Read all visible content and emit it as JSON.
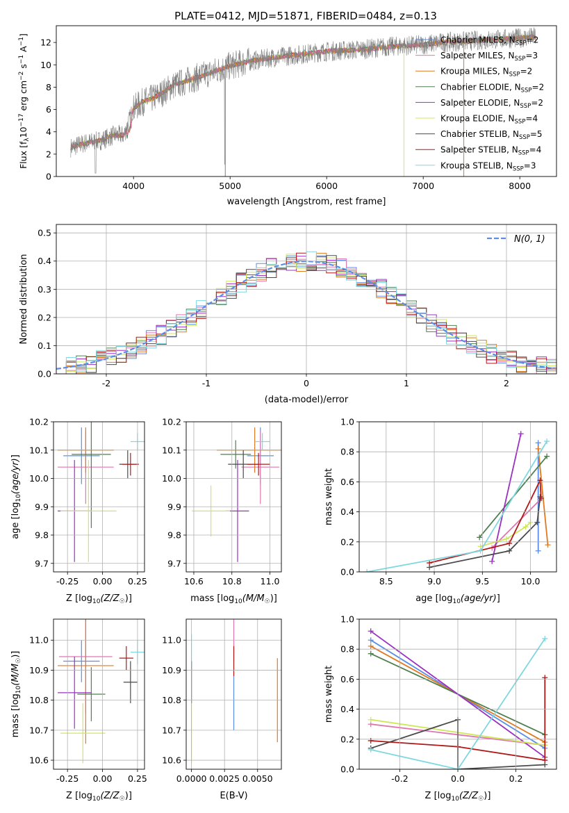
{
  "figure_title": "PLATE=0412, MJD=51871, FIBERID=0484, z=0.13",
  "colors": {
    "Chabrier MILES": "#5b8ee6",
    "Salpeter MILES": "#e075b0",
    "Kroupa MILES": "#e07a1f",
    "Chabrier ELODIE": "#4f7f4f",
    "Salpeter ELODIE": "#9a30c0",
    "Kroupa ELODIE": "#cfe85a",
    "Chabrier STELIB": "#4a4a4a",
    "Salpeter STELIB": "#b01818",
    "Kroupa STELIB": "#7fd8e0",
    "model_line": "#808080",
    "normal_curve": "#5b8ee6"
  },
  "chart_data": [
    {
      "id": "spectrum",
      "type": "line",
      "title": "PLATE=0412, MJD=51871, FIBERID=0484, z=0.13",
      "xlabel": "wavelength [Angstrom, rest frame]",
      "ylabel": "Flux [f_λ 10^-17 erg cm^-2 s^-1 A^-1]",
      "xlim": [
        3200,
        8380
      ],
      "ylim": [
        0,
        13.5
      ],
      "xticks": [
        4000,
        5000,
        6000,
        7000,
        8000
      ],
      "yticks": [
        0,
        2,
        4,
        6,
        8,
        10,
        12
      ],
      "grid": false,
      "legend_position": "upper-right",
      "series": [
        {
          "name": "Chabrier MILES, N_SSP=2",
          "label_base": "Chabrier MILES, N",
          "label_sub": "SSP",
          "label_n": "=2",
          "color_key": "Chabrier MILES"
        },
        {
          "name": "Salpeter MILES, N_SSP=3",
          "label_base": "Salpeter MILES, N",
          "label_sub": "SSP",
          "label_n": "=3",
          "color_key": "Salpeter MILES"
        },
        {
          "name": "Kroupa MILES, N_SSP=2",
          "label_base": "Kroupa MILES, N",
          "label_sub": "SSP",
          "label_n": "=2",
          "color_key": "Kroupa MILES"
        },
        {
          "name": "Chabrier ELODIE, N_SSP=2",
          "label_base": "Chabrier ELODIE, N",
          "label_sub": "SSP",
          "label_n": "=2",
          "color_key": "Chabrier ELODIE"
        },
        {
          "name": "Salpeter ELODIE, N_SSP=2",
          "label_base": "Salpeter ELODIE, N",
          "label_sub": "SSP",
          "label_n": "=2",
          "color_key": "Salpeter ELODIE"
        },
        {
          "name": "Kroupa ELODIE, N_SSP=4",
          "label_base": "Kroupa ELODIE, N",
          "label_sub": "SSP",
          "label_n": "=4",
          "color_key": "Kroupa ELODIE"
        },
        {
          "name": "Chabrier STELIB, N_SSP=5",
          "label_base": "Chabrier STELIB, N",
          "label_sub": "SSP",
          "label_n": "=5",
          "color_key": "Chabrier STELIB"
        },
        {
          "name": "Salpeter STELIB, N_SSP=4",
          "label_base": "Salpeter STELIB, N",
          "label_sub": "SSP",
          "label_n": "=4",
          "color_key": "Salpeter STELIB"
        },
        {
          "name": "Kroupa STELIB, N_SSP=3",
          "label_base": "Kroupa STELIB, N",
          "label_sub": "SSP",
          "label_n": "=3",
          "color_key": "Kroupa STELIB"
        }
      ],
      "continuum": {
        "x": [
          3350,
          3500,
          3650,
          3800,
          3900,
          3950,
          4000,
          4100,
          4200,
          4300,
          4400,
          4600,
          4800,
          5000,
          5200,
          5400,
          5600,
          5800,
          6000,
          6200,
          6400,
          6600,
          6800,
          7000,
          7200,
          7400,
          7600,
          7800,
          8000,
          8170
        ],
        "y": [
          2.6,
          3.0,
          3.2,
          3.7,
          3.7,
          4.9,
          6.1,
          6.7,
          7.0,
          7.5,
          8.1,
          8.7,
          9.3,
          9.9,
          10.3,
          10.6,
          10.8,
          11.0,
          11.2,
          11.3,
          11.4,
          11.6,
          11.7,
          11.8,
          12.0,
          12.1,
          12.2,
          12.3,
          12.4,
          12.5
        ]
      },
      "drop_lines": [
        {
          "x": 6800,
          "color_key": "Kroupa ELODIE"
        },
        {
          "x": 7420,
          "color_key": "Kroupa MILES"
        },
        {
          "x": 4950,
          "color_key": "model_line"
        }
      ]
    },
    {
      "id": "residuals",
      "type": "histogram",
      "xlabel": "(data-model)/error",
      "ylabel": "Normed distribution",
      "xlim": [
        -2.5,
        2.5
      ],
      "ylim": [
        0,
        0.53
      ],
      "xticks": [
        -2,
        -1,
        0,
        1,
        2
      ],
      "yticks": [
        0.0,
        0.1,
        0.2,
        0.3,
        0.4,
        0.5
      ],
      "grid": true,
      "bin_width": 0.1,
      "legend_position": "upper-right",
      "normal_curve": {
        "mean": 0,
        "sigma": 1,
        "label": "N(0, 1)"
      }
    },
    {
      "id": "age_vs_Z",
      "type": "scatter",
      "xlabel": "Z [log10(Z/Z☉)]",
      "ylabel": "age [log10(age/yr)]",
      "xlim": [
        -0.35,
        0.3
      ],
      "ylim": [
        9.67,
        10.2
      ],
      "xticks": [
        -0.25,
        0.0,
        0.25
      ],
      "yticks": [
        9.7,
        9.8,
        9.9,
        10.0,
        10.1,
        10.2
      ],
      "grid": true,
      "points": [
        {
          "color_key": "Chabrier MILES",
          "x": -0.15,
          "y": 10.08,
          "xerr": 0.13,
          "yerr": 0.1
        },
        {
          "color_key": "Salpeter MILES",
          "x": -0.12,
          "y": 10.04,
          "xerr": 0.2,
          "yerr": 0.13
        },
        {
          "color_key": "Kroupa MILES",
          "x": -0.12,
          "y": 10.1,
          "xerr": 0.2,
          "yerr": 0.08
        },
        {
          "color_key": "Chabrier ELODIE",
          "x": -0.08,
          "y": 10.085,
          "xerr": 0.14,
          "yerr": 0.26
        },
        {
          "color_key": "Salpeter ELODIE",
          "x": -0.2,
          "y": 9.885,
          "xerr": 0.12,
          "yerr": 0.18
        },
        {
          "color_key": "Kroupa ELODIE",
          "x": -0.1,
          "y": 9.885,
          "xerr": 0.2,
          "yerr": 0.18
        },
        {
          "color_key": "Chabrier STELIB",
          "x": 0.18,
          "y": 10.05,
          "xerr": 0.06,
          "yerr": 0.05
        },
        {
          "color_key": "Salpeter STELIB",
          "x": 0.2,
          "y": 10.05,
          "xerr": 0.06,
          "yerr": 0.04
        },
        {
          "color_key": "Kroupa STELIB",
          "x": 0.25,
          "y": 10.13,
          "xerr": 0.05,
          "yerr": 0.03
        }
      ]
    },
    {
      "id": "age_vs_mass",
      "type": "scatter",
      "xlabel": "mass [log10(M/M☉)]",
      "ylabel": "",
      "xlim": [
        10.56,
        11.06
      ],
      "ylim": [
        9.67,
        10.2
      ],
      "xticks": [
        10.6,
        10.8,
        11.0
      ],
      "yticks": [
        9.7,
        9.8,
        9.9,
        10.0,
        10.1,
        10.2
      ],
      "grid": true,
      "points": [
        {
          "color_key": "Chabrier MILES",
          "x": 10.95,
          "y": 10.08,
          "xerr": 0.07,
          "yerr": 0.1
        },
        {
          "color_key": "Salpeter MILES",
          "x": 10.95,
          "y": 10.04,
          "xerr": 0.1,
          "yerr": 0.13
        },
        {
          "color_key": "Kroupa MILES",
          "x": 10.92,
          "y": 10.1,
          "xerr": 0.2,
          "yerr": 0.08
        },
        {
          "color_key": "Chabrier ELODIE",
          "x": 10.82,
          "y": 10.085,
          "xerr": 0.08,
          "yerr": 0.05
        },
        {
          "color_key": "Salpeter ELODIE",
          "x": 10.83,
          "y": 9.885,
          "xerr": 0.06,
          "yerr": 0.18
        },
        {
          "color_key": "Kroupa ELODIE",
          "x": 10.69,
          "y": 9.885,
          "xerr": 0.1,
          "yerr": 0.09
        },
        {
          "color_key": "Chabrier STELIB",
          "x": 10.86,
          "y": 10.05,
          "xerr": 0.08,
          "yerr": 0.05
        },
        {
          "color_key": "Salpeter STELIB",
          "x": 10.94,
          "y": 10.05,
          "xerr": 0.06,
          "yerr": 0.04
        },
        {
          "color_key": "Kroupa STELIB",
          "x": 10.96,
          "y": 10.13,
          "xerr": 0.04,
          "yerr": 0.03
        }
      ]
    },
    {
      "id": "mass_weight_vs_age",
      "type": "line",
      "xlabel": "age [log10(age/yr)]",
      "ylabel": "mass weight",
      "xlim": [
        8.22,
        10.27
      ],
      "ylim": [
        0,
        1.0
      ],
      "xticks": [
        8.5,
        9.0,
        9.5,
        10.0
      ],
      "yticks": [
        0.0,
        0.2,
        0.4,
        0.6,
        0.8,
        1.0
      ],
      "grid": true,
      "series": [
        {
          "color_key": "Chabrier MILES",
          "x": [
            10.08,
            10.08
          ],
          "y": [
            0.14,
            0.86
          ]
        },
        {
          "color_key": "Salpeter MILES",
          "x": [
            9.6,
            10.1
          ],
          "y": [
            0.16,
            0.48
          ]
        },
        {
          "color_key": "Kroupa MILES",
          "x": [
            10.08,
            10.18
          ],
          "y": [
            0.82,
            0.18
          ]
        },
        {
          "color_key": "Chabrier ELODIE",
          "x": [
            9.47,
            10.17
          ],
          "y": [
            0.23,
            0.77
          ]
        },
        {
          "color_key": "Salpeter ELODIE",
          "x": [
            9.6,
            9.9
          ],
          "y": [
            0.07,
            0.92
          ]
        },
        {
          "color_key": "Kroupa ELODIE",
          "x": [
            9.48,
            9.75,
            9.95,
            10.0
          ],
          "y": [
            0.17,
            0.22,
            0.3,
            0.33
          ]
        },
        {
          "color_key": "Chabrier STELIB",
          "x": [
            8.95,
            9.78,
            10.07,
            10.1
          ],
          "y": [
            0.03,
            0.14,
            0.33,
            0.5
          ]
        },
        {
          "color_key": "Salpeter STELIB",
          "x": [
            8.95,
            9.78,
            10.1,
            10.11
          ],
          "y": [
            0.06,
            0.19,
            0.61,
            0.49
          ]
        },
        {
          "color_key": "Kroupa STELIB",
          "x": [
            8.3,
            9.48,
            10.17
          ],
          "y": [
            0.0,
            0.14,
            0.87
          ]
        }
      ]
    },
    {
      "id": "mass_vs_Z",
      "type": "scatter",
      "xlabel": "Z [log10(Z/Z☉)]",
      "ylabel": "mass [log10(M/M☉)]",
      "xlim": [
        -0.35,
        0.3
      ],
      "ylim": [
        10.57,
        11.07
      ],
      "xticks": [
        -0.25,
        0.0,
        0.25
      ],
      "yticks": [
        10.6,
        10.7,
        10.8,
        10.9,
        11.0
      ],
      "grid": true,
      "points": [
        {
          "color_key": "Chabrier MILES",
          "x": -0.15,
          "y": 10.93,
          "xerr": 0.13,
          "yerr": 0.07
        },
        {
          "color_key": "Salpeter MILES",
          "x": -0.12,
          "y": 10.945,
          "xerr": 0.19,
          "yerr": 0.19
        },
        {
          "color_key": "Kroupa MILES",
          "x": -0.12,
          "y": 10.915,
          "xerr": 0.2,
          "yerr": 0.26
        },
        {
          "color_key": "Chabrier ELODIE",
          "x": -0.08,
          "y": 10.82,
          "xerr": 0.1,
          "yerr": 0.09
        },
        {
          "color_key": "Salpeter ELODIE",
          "x": -0.2,
          "y": 10.825,
          "xerr": 0.12,
          "yerr": 0.12
        },
        {
          "color_key": "Kroupa ELODIE",
          "x": -0.14,
          "y": 10.69,
          "xerr": 0.16,
          "yerr": 0.1
        },
        {
          "color_key": "Chabrier STELIB",
          "x": 0.2,
          "y": 10.86,
          "xerr": 0.05,
          "yerr": 0.07
        },
        {
          "color_key": "Salpeter STELIB",
          "x": 0.17,
          "y": 10.94,
          "xerr": 0.05,
          "yerr": 0.04
        },
        {
          "color_key": "Kroupa STELIB",
          "x": 0.25,
          "y": 10.96,
          "xerr": 0.05,
          "yerr": 0.04
        }
      ]
    },
    {
      "id": "mass_vs_ebv",
      "type": "scatter",
      "xlabel": "E(B-V)",
      "ylabel": "",
      "xlim": [
        -0.0004,
        0.0068
      ],
      "ylim": [
        10.57,
        11.07
      ],
      "xticks": [
        0.0,
        0.0025,
        0.005
      ],
      "xtick_labels": [
        "0.0000",
        "0.0025",
        "0.0050"
      ],
      "yticks": [
        10.6,
        10.7,
        10.8,
        10.9,
        11.0
      ],
      "grid": true,
      "points": [
        {
          "color_key": "Kroupa STELIB",
          "x": 0.0,
          "y": 10.96,
          "xerr": 0,
          "yerr": 0.06
        },
        {
          "color_key": "Chabrier STELIB",
          "x": 0.0,
          "y": 10.86,
          "xerr": 0,
          "yerr": 0.07
        },
        {
          "color_key": "Kroupa ELODIE",
          "x": 0.0,
          "y": 10.69,
          "xerr": 0,
          "yerr": 0.1
        },
        {
          "color_key": "Salpeter MILES",
          "x": 0.0032,
          "y": 11.0,
          "xerr": 0,
          "yerr": 0.07
        },
        {
          "color_key": "Salpeter STELIB",
          "x": 0.0032,
          "y": 10.93,
          "xerr": 0,
          "yerr": 0.05
        },
        {
          "color_key": "Chabrier MILES",
          "x": 0.0032,
          "y": 10.79,
          "xerr": 0,
          "yerr": 0.09
        },
        {
          "color_key": "Kroupa MILES",
          "x": 0.0065,
          "y": 10.8,
          "xerr": 0,
          "yerr": 0.14
        }
      ]
    },
    {
      "id": "mass_weight_vs_Z",
      "type": "line",
      "xlabel": "Z [log10(Z/Z☉)]",
      "ylabel": "mass weight",
      "xlim": [
        -0.34,
        0.34
      ],
      "ylim": [
        0,
        1.0
      ],
      "xticks": [
        -0.2,
        0.0,
        0.2
      ],
      "yticks": [
        0.0,
        0.2,
        0.4,
        0.6,
        0.8,
        1.0
      ],
      "grid": true,
      "series": [
        {
          "color_key": "Chabrier MILES",
          "x": [
            -0.3,
            0.3
          ],
          "y": [
            0.86,
            0.14
          ]
        },
        {
          "color_key": "Salpeter MILES",
          "x": [
            -0.3,
            0.3
          ],
          "y": [
            0.3,
            0.16
          ]
        },
        {
          "color_key": "Kroupa MILES",
          "x": [
            -0.3,
            0.3
          ],
          "y": [
            0.82,
            0.18
          ]
        },
        {
          "color_key": "Chabrier ELODIE",
          "x": [
            -0.3,
            0.3
          ],
          "y": [
            0.77,
            0.23
          ]
        },
        {
          "color_key": "Salpeter ELODIE",
          "x": [
            -0.3,
            0.3
          ],
          "y": [
            0.92,
            0.08
          ]
        },
        {
          "color_key": "Kroupa ELODIE",
          "x": [
            -0.3,
            0.3
          ],
          "y": [
            0.33,
            0.16
          ]
        },
        {
          "color_key": "Chabrier STELIB",
          "x": [
            -0.3,
            0.0,
            0.0,
            0.3
          ],
          "y": [
            0.14,
            0.33,
            0.0,
            0.03
          ]
        },
        {
          "color_key": "Salpeter STELIB",
          "x": [
            -0.3,
            0.0,
            0.3,
            0.3
          ],
          "y": [
            0.19,
            0.15,
            0.06,
            0.61
          ]
        },
        {
          "color_key": "Kroupa STELIB",
          "x": [
            -0.3,
            0.0,
            0.3
          ],
          "y": [
            0.13,
            0.0,
            0.87
          ]
        }
      ]
    }
  ]
}
